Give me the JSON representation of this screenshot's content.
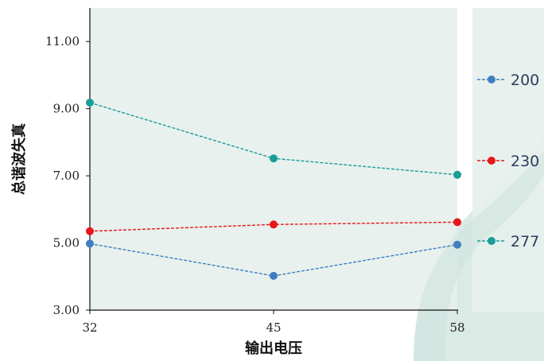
{
  "chart_data": {
    "type": "line",
    "xlabel": "输出电压",
    "ylabel": "总谐波失真",
    "x": [
      32,
      45,
      58
    ],
    "x_tick_labels": [
      "32",
      "45",
      "58"
    ],
    "ylim": [
      3.0,
      12.0
    ],
    "y_ticks": [
      3.0,
      5.0,
      7.0,
      9.0,
      11.0
    ],
    "y_tick_labels": [
      "3.00",
      "5.00",
      "7.00",
      "9.00",
      "11.00"
    ],
    "grid": false,
    "legend_position": "right",
    "series": [
      {
        "name": "200",
        "color": "#3f7ebf",
        "values": [
          4.98,
          4.02,
          4.95
        ]
      },
      {
        "name": "230",
        "color": "#e8161b",
        "values": [
          5.35,
          5.55,
          5.62
        ]
      },
      {
        "name": "277",
        "color": "#1a9c98",
        "values": [
          9.18,
          7.52,
          7.03
        ]
      }
    ]
  },
  "colors": {
    "plot_background": "#e6f0ec",
    "legend_background": "#e6f0ec",
    "axis": "#111111",
    "watermark": "#cfe3dd"
  }
}
